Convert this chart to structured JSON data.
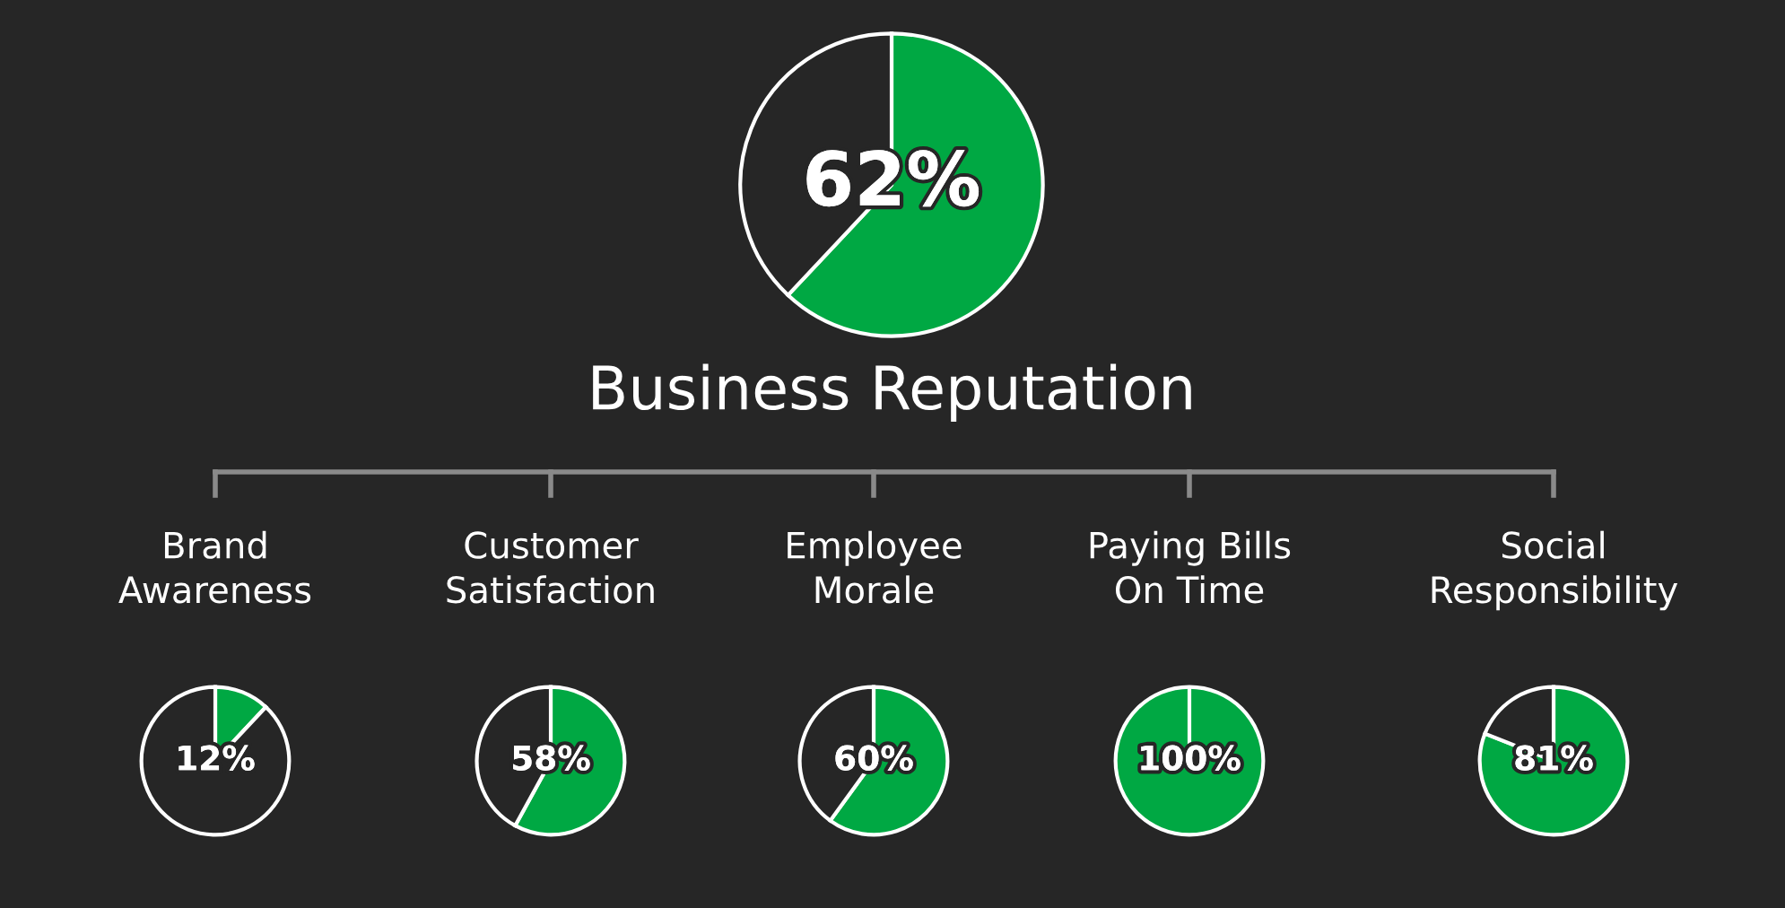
{
  "chart_data": [
    {
      "type": "pie",
      "title": "Business Reputation",
      "categories": [
        null,
        null
      ],
      "values": [
        62,
        38
      ],
      "colors": [
        "#00a843",
        "#262626"
      ],
      "annotations": [
        "62%"
      ]
    },
    {
      "type": "pie",
      "title": "Brand\nAwareness",
      "categories": [
        null,
        null
      ],
      "values": [
        12,
        88
      ],
      "colors": [
        "#00a843",
        "#262626"
      ],
      "annotations": [
        "12%"
      ]
    },
    {
      "type": "pie",
      "title": "Customer\nSatisfaction",
      "categories": [
        null,
        null
      ],
      "values": [
        58,
        42
      ],
      "colors": [
        "#00a843",
        "#262626"
      ],
      "annotations": [
        "58%"
      ]
    },
    {
      "type": "pie",
      "title": "Employee\nMorale",
      "categories": [
        null,
        null
      ],
      "values": [
        60,
        40
      ],
      "colors": [
        "#00a843",
        "#262626"
      ],
      "annotations": [
        "60%"
      ]
    },
    {
      "type": "pie",
      "title": "Paying Bills\nOn Time",
      "categories": [
        null,
        null
      ],
      "values": [
        100,
        0
      ],
      "colors": [
        "#00a843",
        "#262626"
      ],
      "annotations": [
        "100%"
      ]
    },
    {
      "type": "pie",
      "title": "Social\nResponsibility",
      "categories": [
        null,
        null
      ],
      "values": [
        81,
        19
      ],
      "colors": [
        "#00a843",
        "#262626"
      ],
      "annotations": [
        "81%"
      ]
    }
  ]
}
